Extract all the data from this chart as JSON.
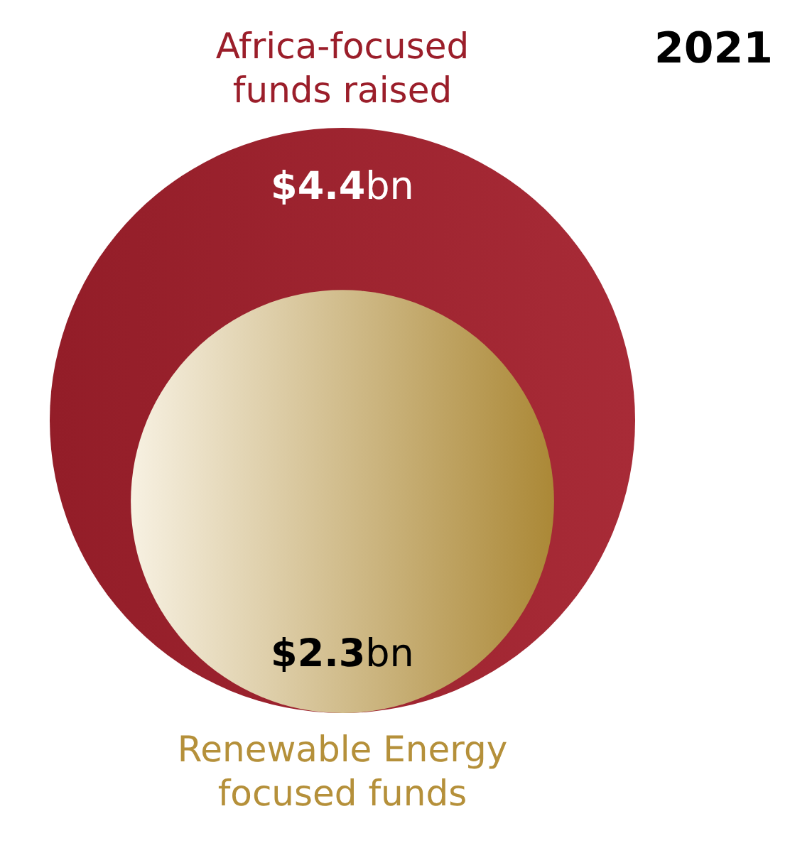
{
  "chart_data": {
    "type": "other",
    "title": "2021",
    "categories": [
      "Africa-focused funds raised",
      "Renewable Energy focused funds"
    ],
    "values": [
      4.4,
      2.3
    ],
    "colors": [
      "#a3202c",
      "#c9a040"
    ],
    "value_labels": [
      "$4.4bn",
      "$2.3bn"
    ]
  }
}
